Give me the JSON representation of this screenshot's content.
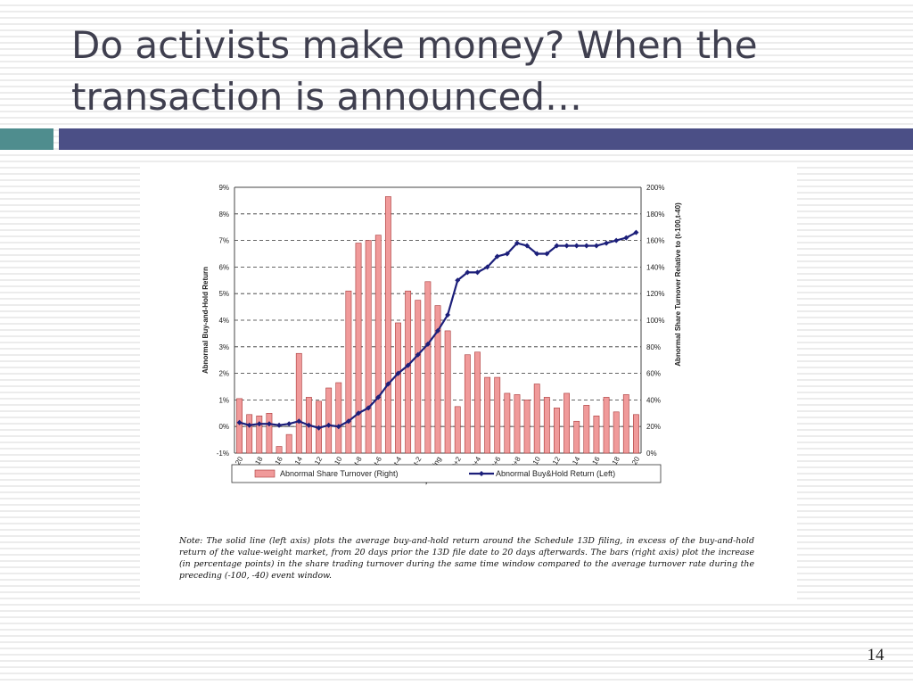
{
  "slide": {
    "title_line1": "Do activists make money? When the",
    "title_line2": "transaction is announced…",
    "page_number": "14",
    "note": "Note: The solid line (left axis) plots the average buy-and-hold return around the Schedule 13D filing, in excess of the buy-and-hold return of the value-weight market, from 20 days prior the 13D file date to 20 days afterwards. The bars (right axis) plot the increase (in percentage points) in the share trading turnover during the same time window compared to the average turnover rate during the preceding (-100, -40) event window.",
    "colors": {
      "accent_left": "#4f8d8e",
      "accent_right": "#4b4f86",
      "title": "#3f3f4f",
      "bar_fill": "#f09a9a",
      "bar_stroke": "#a83838",
      "line": "#1c1f7a"
    }
  },
  "chart_data": {
    "type": "bar+line",
    "categories": [
      "t-20",
      "t-19",
      "t-18",
      "t-17",
      "t-16",
      "t-15",
      "t-14",
      "t-13",
      "t-12",
      "t-11",
      "t-10",
      "t-9",
      "t-8",
      "t-7",
      "t-6",
      "t-5",
      "t-4",
      "t-3",
      "t-2",
      "t-1",
      "13d Filing",
      "t+1",
      "t+2",
      "t+3",
      "t+4",
      "t+5",
      "t+6",
      "t+7",
      "t+8",
      "t+9",
      "t+10",
      "t+11",
      "t+12",
      "t+13",
      "t+14",
      "t+15",
      "t+16",
      "t+17",
      "t+18",
      "t+19",
      "t+20"
    ],
    "tick_labels": [
      "t-20",
      "t-18",
      "t-16",
      "t-14",
      "t-12",
      "t-10",
      "t-8",
      "t-6",
      "t-4",
      "t-2",
      "13d Filing",
      "t+2",
      "t+4",
      "t+6",
      "t+8",
      "t+10",
      "t+12",
      "t+14",
      "t+16",
      "t+18",
      "t+20"
    ],
    "y_left": {
      "label": "Abnormal Buy-and-Hold Return",
      "ticks": [
        "9%",
        "8%",
        "7%",
        "6%",
        "5%",
        "4%",
        "3%",
        "2%",
        "1%",
        "0%",
        "-1%"
      ],
      "min": -1,
      "max": 9
    },
    "y_right": {
      "label": "Abnormal Share Turnover Relative to (t-100,t-40)",
      "ticks": [
        "200%",
        "180%",
        "160%",
        "140%",
        "120%",
        "100%",
        "80%",
        "60%",
        "40%",
        "20%",
        "0%"
      ],
      "min": 0,
      "max": 200
    },
    "grid": true,
    "legend": [
      "Abnormal Share Turnover (Right)",
      "Abnormal Buy&Hold Return (Left)"
    ],
    "legend_position": "bottom",
    "series": [
      {
        "name": "Abnormal Share Turnover (Right)",
        "kind": "bar",
        "axis": "right",
        "values": [
          41,
          29,
          28,
          30,
          5,
          14,
          75,
          42,
          39,
          49,
          53,
          122,
          158,
          160,
          164,
          193,
          98,
          122,
          115,
          129,
          111,
          92,
          35,
          74,
          76,
          57,
          57,
          45,
          44,
          40,
          52,
          42,
          34,
          45,
          24,
          36,
          28,
          42,
          31,
          44,
          29
        ]
      },
      {
        "name": "Abnormal Buy&Hold Return (Left)",
        "kind": "line",
        "axis": "left",
        "values": [
          0.15,
          0.05,
          0.1,
          0.1,
          0.05,
          0.1,
          0.2,
          0.05,
          -0.05,
          0.05,
          0.0,
          0.2,
          0.5,
          0.7,
          1.1,
          1.6,
          2.0,
          2.3,
          2.7,
          3.1,
          3.6,
          4.2,
          5.5,
          5.8,
          5.8,
          6.0,
          6.4,
          6.5,
          6.9,
          6.8,
          6.5,
          6.5,
          6.8,
          6.8,
          6.8,
          6.8,
          6.8,
          6.9,
          7.0,
          7.1,
          7.3
        ]
      }
    ]
  }
}
